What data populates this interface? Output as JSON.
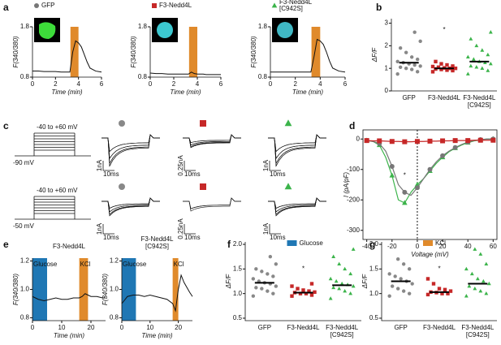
{
  "panel_labels": [
    "a",
    "b",
    "c",
    "d",
    "e",
    "f",
    "g"
  ],
  "panel_c": {
    "protocols": [
      {
        "range": "-40 to +60 mV",
        "hold": "-90 mV"
      },
      {
        "range": "-40 to +60 mV",
        "hold": "-50 mV"
      }
    ],
    "scale_bars": [
      [
        "1nA",
        "10ms"
      ],
      [
        "0.25nA",
        "10ms"
      ],
      [
        "1nA",
        "10ms"
      ],
      [
        "1nA",
        "10ms"
      ],
      [
        "0.25nA",
        "10ms"
      ],
      [
        "1nA",
        "10ms"
      ]
    ]
  },
  "chart_data": [
    {
      "type": "line",
      "xlabel": "Time (min)",
      "ylabel": "F(340/380)",
      "legend": {
        "lines": [
          "GFP"
        ],
        "marker": "circle",
        "color": "#777777"
      },
      "x": [
        0,
        0.5,
        1,
        1.5,
        2,
        2.5,
        3,
        3.25,
        3.5,
        3.75,
        4,
        4.25,
        4.5,
        4.75,
        5,
        5.5,
        6
      ],
      "series": [
        {
          "color": "#111111",
          "values": [
            0.92,
            0.92,
            0.91,
            0.91,
            0.91,
            0.9,
            0.9,
            0.9,
            1.3,
            1.52,
            1.48,
            1.4,
            1.25,
            1.1,
            0.98,
            0.92,
            0.9
          ]
        }
      ],
      "bands": [
        {
          "x": [
            3.3,
            4
          ],
          "color": "#e08a2b"
        }
      ],
      "xlim": [
        0,
        6
      ],
      "xticks": [
        0,
        2,
        4,
        6
      ],
      "ylim": [
        0.8,
        1.8
      ],
      "yticks": [
        0.8,
        1.8
      ]
    },
    {
      "type": "line",
      "xlabel": "Time (min)",
      "ylabel": "F(340/380)",
      "legend": {
        "lines": [
          "F3-Nedd4L"
        ],
        "marker": "square",
        "color": "#c62828"
      },
      "x": [
        0,
        0.5,
        1,
        1.5,
        2,
        2.5,
        3,
        3.25,
        3.5,
        3.75,
        4,
        4.25,
        4.5,
        4.75,
        5,
        5.5,
        6
      ],
      "series": [
        {
          "color": "#111111",
          "values": [
            0.88,
            0.87,
            0.87,
            0.86,
            0.86,
            0.86,
            0.86,
            0.86,
            0.9,
            0.87,
            0.86,
            0.86,
            0.86,
            0.85,
            0.85,
            0.85,
            0.85
          ]
        }
      ],
      "bands": [
        {
          "x": [
            3.3,
            4
          ],
          "color": "#e08a2b"
        }
      ],
      "xlim": [
        0,
        6
      ],
      "xticks": [
        0,
        2,
        4,
        6
      ],
      "ylim": [
        0.8,
        1.8
      ],
      "yticks": [
        0.8,
        1.8
      ]
    },
    {
      "type": "line",
      "xlabel": "Time (min)",
      "ylabel": "F(340/380)",
      "legend": {
        "lines": [
          "F3-Nedd4L",
          "[C942S]"
        ],
        "marker": "triangle",
        "color": "#3cb44b"
      },
      "x": [
        0,
        0.5,
        1,
        1.5,
        2,
        2.5,
        3,
        3.25,
        3.5,
        3.75,
        4,
        4.25,
        4.5,
        4.75,
        5,
        5.5,
        6
      ],
      "series": [
        {
          "color": "#111111",
          "values": [
            0.9,
            0.9,
            0.9,
            0.9,
            0.9,
            0.9,
            0.9,
            0.9,
            1.2,
            1.55,
            1.52,
            1.45,
            1.3,
            1.12,
            0.98,
            0.92,
            0.9
          ]
        }
      ],
      "bands": [
        {
          "x": [
            3.3,
            4
          ],
          "color": "#e08a2b"
        }
      ],
      "xlim": [
        0,
        6
      ],
      "xticks": [
        0,
        2,
        4,
        6
      ],
      "ylim": [
        0.8,
        1.8
      ],
      "yticks": [
        0.8,
        1.8
      ]
    },
    {
      "type": "strip",
      "ylabel": "ΔF/F",
      "categories": [
        [
          "GFP"
        ],
        [
          "F3-Nedd4L"
        ],
        [
          "F3-Nedd4L",
          "[C942S]"
        ]
      ],
      "groups": [
        {
          "color": "#888888",
          "marker": "circle",
          "mean": 1.25,
          "values": [
            0.75,
            0.85,
            0.95,
            1.0,
            1.05,
            1.1,
            1.15,
            1.2,
            1.25,
            1.3,
            1.4,
            1.5,
            1.7,
            1.9,
            2.2,
            2.6
          ]
        },
        {
          "color": "#c62828",
          "marker": "square",
          "mean": 1.0,
          "values": [
            0.85,
            0.9,
            0.92,
            0.95,
            0.97,
            1.0,
            1.0,
            1.02,
            1.05,
            1.08,
            1.1,
            1.15,
            1.2,
            1.3
          ]
        },
        {
          "color": "#3cb44b",
          "marker": "triangle",
          "mean": 1.3,
          "values": [
            0.75,
            0.9,
            1.0,
            1.05,
            1.1,
            1.2,
            1.25,
            1.3,
            1.4,
            1.5,
            1.6,
            1.8,
            2.0,
            2.3,
            2.6
          ]
        }
      ],
      "annotations": [
        {
          "text": "*",
          "category": 1,
          "y": 2.7
        }
      ],
      "ylim": [
        0,
        3.2
      ],
      "yticks": [
        0,
        1,
        2,
        3
      ]
    },
    {
      "type": "line",
      "xlabel": "Voltage (mV)",
      "ylabel": "I (pA/pF)",
      "zero_line": true,
      "x": [
        -40,
        -35,
        -30,
        -25,
        -20,
        -15,
        -10,
        -5,
        0,
        5,
        10,
        15,
        20,
        25,
        30,
        35,
        40,
        45,
        50,
        55,
        60
      ],
      "series": [
        {
          "color": "#3cb44b",
          "marker": "triangle",
          "values": [
            -5,
            -8,
            -20,
            -60,
            -120,
            -200,
            -210,
            -175,
            -150,
            -130,
            -105,
            -80,
            -60,
            -42,
            -30,
            -20,
            -12,
            -6,
            -3,
            0,
            0
          ]
        },
        {
          "color": "#777777",
          "marker": "circle",
          "values": [
            -5,
            -8,
            -15,
            -40,
            -90,
            -150,
            -175,
            -185,
            -160,
            -130,
            -100,
            -75,
            -55,
            -40,
            -28,
            -18,
            -10,
            -5,
            -2,
            0,
            0
          ]
        },
        {
          "color": "#c62828",
          "marker": "square",
          "values": [
            -5,
            -6,
            -6,
            -7,
            -8,
            -8,
            -9,
            -9,
            -8,
            -8,
            -7,
            -7,
            -6,
            -6,
            -5,
            -5,
            -5,
            -4,
            -4,
            -4,
            -4
          ]
        }
      ],
      "annotations": [
        {
          "text": "*",
          "x": -10,
          "y": -120
        }
      ],
      "xlim": [
        -43,
        63
      ],
      "xticks": [
        -40,
        -20,
        0,
        20,
        40,
        60
      ],
      "ylim": [
        -330,
        30
      ],
      "yticks": [
        0,
        -100,
        -200,
        -300
      ]
    },
    {
      "type": "line",
      "title": [
        "F3-Nedd4L"
      ],
      "xlabel": "Time (min)",
      "ylabel": "F(340/380)",
      "x": [
        0,
        2,
        4,
        6,
        8,
        10,
        12,
        14,
        16,
        17,
        18,
        19,
        20,
        22,
        24,
        25
      ],
      "series": [
        {
          "color": "#111111",
          "values": [
            0.95,
            0.93,
            0.92,
            0.93,
            0.94,
            0.93,
            0.93,
            0.94,
            0.94,
            0.95,
            0.97,
            0.96,
            0.95,
            0.95,
            0.94,
            0.94
          ]
        }
      ],
      "bands": [
        {
          "x": [
            0,
            5
          ],
          "color": "#1f77b4",
          "label": "Glucose"
        },
        {
          "x": [
            16,
            19
          ],
          "color": "#e08a2b",
          "label": "KCl"
        }
      ],
      "xlim": [
        0,
        25
      ],
      "xticks": [
        0,
        10,
        20
      ],
      "ylim": [
        0.78,
        1.22
      ],
      "yticks": [
        0.8,
        {
          "value": 1,
          "label": "1.0"
        },
        1.2
      ]
    },
    {
      "type": "line",
      "title": [
        "F3-Nedd4L",
        "[C942S]"
      ],
      "xlabel": "Time (min)",
      "ylabel": "F(340/380)",
      "x": [
        0,
        2,
        4,
        6,
        8,
        10,
        12,
        14,
        16,
        18,
        19,
        20,
        21,
        22,
        24,
        25
      ],
      "series": [
        {
          "color": "#111111",
          "values": [
            0.9,
            0.95,
            0.96,
            0.96,
            0.95,
            0.96,
            0.95,
            0.94,
            0.93,
            0.9,
            0.85,
            1.0,
            1.1,
            1.05,
            0.98,
            0.95
          ]
        }
      ],
      "bands": [
        {
          "x": [
            0,
            5
          ],
          "color": "#1f77b4",
          "label": "Glucose"
        },
        {
          "x": [
            18,
            20
          ],
          "color": "#e08a2b",
          "label": "KCl"
        }
      ],
      "xlim": [
        0,
        25
      ],
      "xticks": [
        0,
        10,
        20
      ],
      "ylim": [
        0.78,
        1.22
      ],
      "yticks": [
        0.8,
        {
          "value": 1,
          "label": "1.0"
        },
        1.2
      ]
    },
    {
      "type": "strip",
      "ylabel": "ΔF/F",
      "legend": {
        "label": "Glucose",
        "color": "#1f77b4"
      },
      "categories": [
        [
          "GFP"
        ],
        [
          "F3-Nedd4L"
        ],
        [
          "F3-Nedd4L",
          "[C942S]"
        ]
      ],
      "groups": [
        {
          "color": "#888888",
          "marker": "circle",
          "mean": 1.22,
          "values": [
            0.95,
            1.0,
            1.05,
            1.1,
            1.12,
            1.15,
            1.2,
            1.22,
            1.25,
            1.3,
            1.35,
            1.4,
            1.45,
            1.5,
            1.6,
            1.75
          ]
        },
        {
          "color": "#c62828",
          "marker": "square",
          "mean": 1.02,
          "values": [
            0.95,
            0.97,
            1.0,
            1.0,
            1.02,
            1.03,
            1.05,
            1.07,
            1.1,
            1.15,
            1.2
          ]
        },
        {
          "color": "#3cb44b",
          "marker": "triangle",
          "mean": 1.17,
          "values": [
            0.9,
            1.0,
            1.05,
            1.1,
            1.12,
            1.15,
            1.18,
            1.2,
            1.25,
            1.3,
            1.4,
            1.5,
            1.6,
            1.75,
            1.9
          ]
        }
      ],
      "annotations": [
        {
          "text": "*",
          "category": 1,
          "y": 1.5
        }
      ],
      "ylim": [
        0.45,
        2.05
      ],
      "yticks": [
        0.5,
        {
          "value": 1,
          "label": "1.0"
        },
        1.5,
        {
          "value": 2,
          "label": "2.0"
        }
      ]
    },
    {
      "type": "strip",
      "ylabel": "ΔF/F",
      "legend": {
        "label": "KCl",
        "color": "#e08a2b"
      },
      "categories": [
        [
          "GFP"
        ],
        [
          "F3-Nedd4L"
        ],
        [
          "F3-Nedd4L",
          "[C942S]"
        ]
      ],
      "groups": [
        {
          "color": "#888888",
          "marker": "circle",
          "mean": 1.25,
          "values": [
            0.95,
            1.0,
            1.05,
            1.1,
            1.15,
            1.2,
            1.25,
            1.3,
            1.35,
            1.4,
            1.5,
            1.6,
            1.7
          ]
        },
        {
          "color": "#c62828",
          "marker": "square",
          "mean": 1.03,
          "values": [
            0.98,
            1.0,
            1.0,
            1.02,
            1.03,
            1.05,
            1.08,
            1.1,
            1.2,
            1.3
          ]
        },
        {
          "color": "#3cb44b",
          "marker": "triangle",
          "mean": 1.2,
          "values": [
            0.95,
            1.0,
            1.05,
            1.1,
            1.15,
            1.2,
            1.25,
            1.3,
            1.4,
            1.5,
            1.6,
            1.8,
            1.9
          ]
        }
      ],
      "annotations": [
        {
          "text": "*",
          "category": 1,
          "y": 1.5
        }
      ],
      "ylim": [
        0.45,
        2.05
      ],
      "yticks": [
        0.5,
        {
          "value": 1,
          "label": "1.0"
        },
        1.5,
        {
          "value": 2,
          "label": "2.0"
        }
      ]
    }
  ]
}
